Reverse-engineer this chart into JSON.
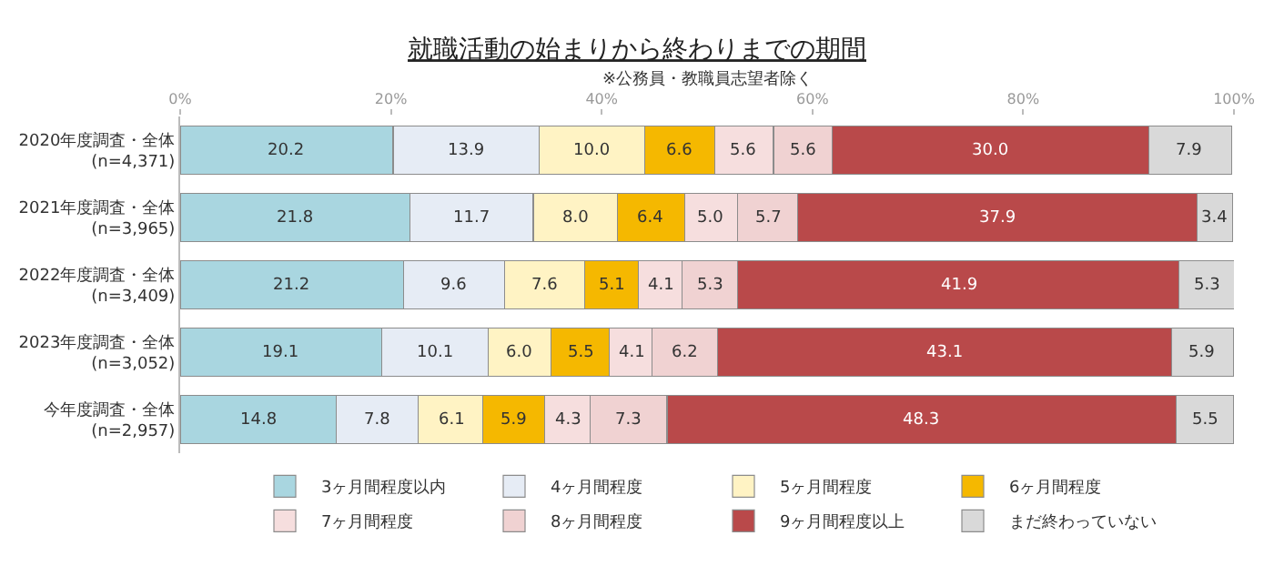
{
  "chart_data": {
    "type": "bar",
    "orientation": "horizontal",
    "stacked": true,
    "title": "就職活動の始まりから終わりまでの期間",
    "subtitle": "※公務員・教職員志望者除く",
    "categories": [
      "2020年度調査・全体\n(n=4,371)",
      "2021年度調査・全体\n(n=3,965)",
      "2022年度調査・全体\n(n=3,409)",
      "2023年度調査・全体\n(n=3,052)",
      "今年度調査・全体\n(n=2,957)"
    ],
    "series": [
      {
        "name": "3ヶ月間程度以内",
        "color": "#a9d6e0",
        "values": [
          20.2,
          21.8,
          21.2,
          19.1,
          14.8
        ],
        "value_labels": [
          "20.2",
          "21.8",
          "21.2",
          "19.1",
          "14.8"
        ]
      },
      {
        "name": "4ヶ月間程度",
        "color": "#e6ecf5",
        "values": [
          13.9,
          11.7,
          9.6,
          10.1,
          7.8
        ],
        "value_labels": [
          "13.9",
          "11.7",
          "9.6",
          "10.1",
          "7.8"
        ]
      },
      {
        "name": "5ヶ月間程度",
        "color": "#fff3c4",
        "values": [
          10.0,
          8.0,
          7.6,
          6.0,
          6.1
        ],
        "value_labels": [
          "10.0",
          "8.0",
          "7.6",
          "6.0",
          "6.1"
        ]
      },
      {
        "name": "6ヶ月間程度",
        "color": "#f5b800",
        "values": [
          6.6,
          6.4,
          5.1,
          5.5,
          5.9
        ],
        "value_labels": [
          "6.6",
          "6.4",
          "5.1",
          "5.5",
          "5.9"
        ]
      },
      {
        "name": "7ヶ月間程度",
        "color": "#f6dede",
        "values": [
          5.6,
          5.0,
          4.1,
          4.1,
          4.3
        ],
        "value_labels": [
          "5.6",
          "5.0",
          "4.1",
          "4.1",
          "4.3"
        ]
      },
      {
        "name": "8ヶ月間程度",
        "color": "#f0d2d2",
        "values": [
          5.6,
          5.7,
          5.3,
          6.2,
          7.3
        ],
        "value_labels": [
          "5.6",
          "5.7",
          "5.3",
          "6.2",
          "7.3"
        ]
      },
      {
        "name": "9ヶ月間程度以上",
        "color": "#b9494a",
        "values": [
          30.0,
          37.9,
          41.9,
          43.1,
          48.3
        ],
        "value_labels": [
          "30.0",
          "37.9",
          "41.9",
          "43.1",
          "48.3"
        ]
      },
      {
        "name": "まだ終わっていない",
        "color": "#d9d9d9",
        "values": [
          7.9,
          3.4,
          5.3,
          5.9,
          5.5
        ],
        "value_labels": [
          "7.9",
          "3.4",
          "5.3",
          "5.9",
          "5.5"
        ]
      }
    ],
    "xlim": [
      0,
      100
    ],
    "xticks": [
      {
        "value": 0,
        "label": "0%"
      },
      {
        "value": 20,
        "label": "20%"
      },
      {
        "value": 40,
        "label": "40%"
      },
      {
        "value": 60,
        "label": "60%"
      },
      {
        "value": 80,
        "label": "80%"
      },
      {
        "value": 100,
        "label": "100%"
      }
    ],
    "legend": "bottom"
  }
}
